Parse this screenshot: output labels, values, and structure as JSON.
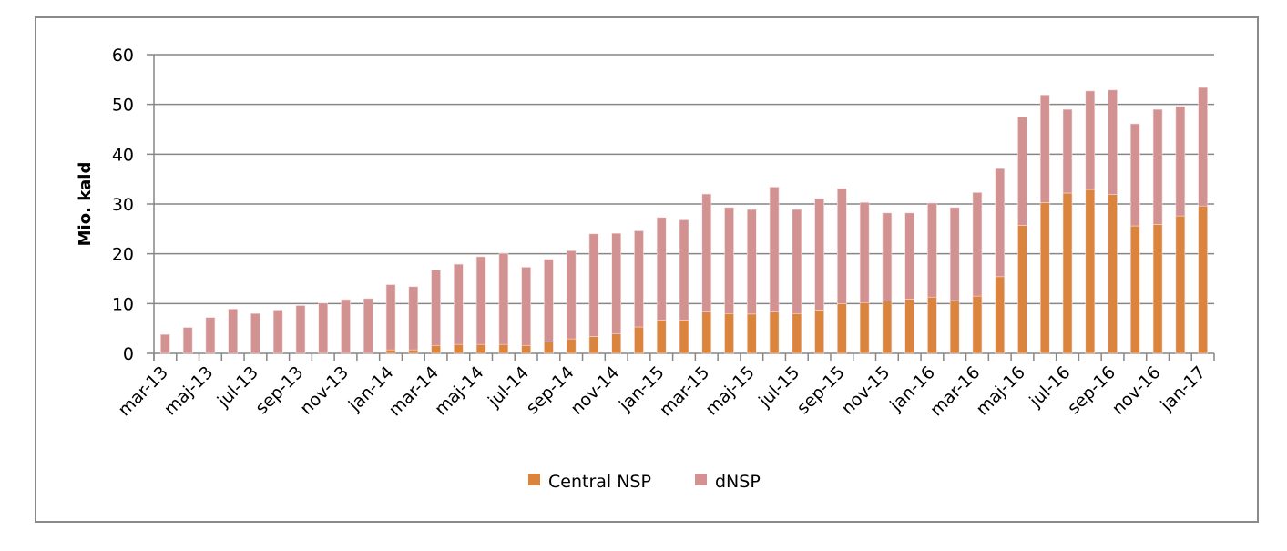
{
  "chart_data": {
    "type": "bar",
    "stacked": true,
    "title": "",
    "xlabel": "",
    "ylabel": "Mio. kald",
    "ylim": [
      0,
      60
    ],
    "yticks": [
      0,
      10,
      20,
      30,
      40,
      50,
      60
    ],
    "grid": true,
    "legend_position": "bottom",
    "categories": [
      "mar-13",
      "apr-13",
      "maj-13",
      "jun-13",
      "jul-13",
      "aug-13",
      "sep-13",
      "okt-13",
      "nov-13",
      "dec-13",
      "jan-14",
      "feb-14",
      "mar-14",
      "apr-14",
      "maj-14",
      "jun-14",
      "jul-14",
      "aug-14",
      "sep-14",
      "okt-14",
      "nov-14",
      "dec-14",
      "jan-15",
      "feb-15",
      "mar-15",
      "apr-15",
      "maj-15",
      "jun-15",
      "jul-15",
      "aug-15",
      "sep-15",
      "okt-15",
      "nov-15",
      "dec-15",
      "jan-16",
      "feb-16",
      "mar-16",
      "apr-16",
      "maj-16",
      "jun-16",
      "jul-16",
      "aug-16",
      "sep-16",
      "okt-16",
      "nov-16",
      "dec-16",
      "jan-17"
    ],
    "series": [
      {
        "name": "Central NSP",
        "color": "#DB843D",
        "values": [
          0,
          0,
          0,
          0,
          0,
          0,
          0,
          0,
          0,
          0,
          0.7,
          0.7,
          1.6,
          1.8,
          1.8,
          1.8,
          1.6,
          2.3,
          2.9,
          3.4,
          3.9,
          5.3,
          6.7,
          6.7,
          8.3,
          8.0,
          7.9,
          8.3,
          8.0,
          8.7,
          10.0,
          10.2,
          10.5,
          10.9,
          11.3,
          10.6,
          11.5,
          15.4,
          25.7,
          30.3,
          32.2,
          32.9,
          31.9,
          25.6,
          25.9,
          27.6,
          29.6
        ]
      },
      {
        "name": "dNSP",
        "color": "#D39292",
        "values": [
          3.8,
          5.2,
          7.2,
          8.9,
          8.0,
          8.7,
          9.6,
          10.1,
          10.8,
          11.0,
          13.1,
          12.7,
          15.1,
          16.1,
          17.6,
          18.3,
          15.7,
          16.6,
          17.7,
          20.6,
          20.2,
          19.3,
          20.6,
          20.1,
          23.7,
          21.3,
          21.0,
          25.1,
          20.9,
          22.4,
          23.1,
          20.1,
          17.7,
          17.3,
          18.9,
          18.7,
          20.8,
          21.7,
          21.8,
          21.6,
          16.8,
          19.8,
          21.0,
          20.5,
          23.1,
          22.0,
          23.8
        ]
      }
    ]
  }
}
